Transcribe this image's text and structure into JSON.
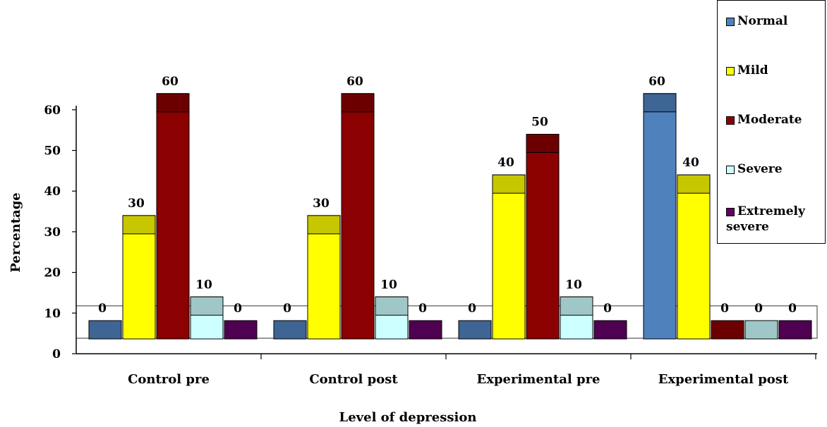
{
  "chart_data": {
    "type": "bar",
    "title": "",
    "xlabel": "Level of depression",
    "ylabel": "Percentage",
    "ylim": [
      0,
      60
    ],
    "yticks": [
      "0",
      "10",
      "20",
      "30",
      "40",
      "50",
      "60"
    ],
    "categories": [
      "Control pre",
      "Control post",
      "Experimental pre",
      "Experimental post"
    ],
    "legend_position": "top-right",
    "series": [
      {
        "name": "Normal",
        "color": "#4F81BD",
        "values": [
          0,
          0,
          0,
          60
        ],
        "labels": [
          "0",
          "0",
          "0",
          "60"
        ]
      },
      {
        "name": "Mild",
        "color": "#FFFF00",
        "values": [
          30,
          30,
          40,
          40
        ],
        "labels": [
          "30",
          "30",
          "40",
          "40"
        ]
      },
      {
        "name": "Moderate",
        "color": "#8B0000",
        "values": [
          60,
          60,
          50,
          0
        ],
        "labels": [
          "60",
          "60",
          "50",
          "0"
        ]
      },
      {
        "name": "Severe",
        "color": "#CCFFFF",
        "values": [
          10,
          10,
          10,
          0
        ],
        "labels": [
          "10",
          "10",
          "10",
          "0"
        ]
      },
      {
        "name": "Extremely severe",
        "color": "#660066",
        "values": [
          0,
          0,
          0,
          0
        ],
        "labels": [
          "0",
          "0",
          "0",
          "0"
        ]
      }
    ]
  },
  "legend": {
    "items": [
      {
        "label": "Normal",
        "color": "#4F81BD"
      },
      {
        "label": "Mild",
        "color": "#FFFF00"
      },
      {
        "label": "Moderate",
        "color": "#8B0000"
      },
      {
        "label": "Severe",
        "color": "#CCFFFF"
      },
      {
        "label": "Extremely severe",
        "label_line1": "Extremely",
        "label_line2": "severe",
        "color": "#660066"
      }
    ]
  }
}
